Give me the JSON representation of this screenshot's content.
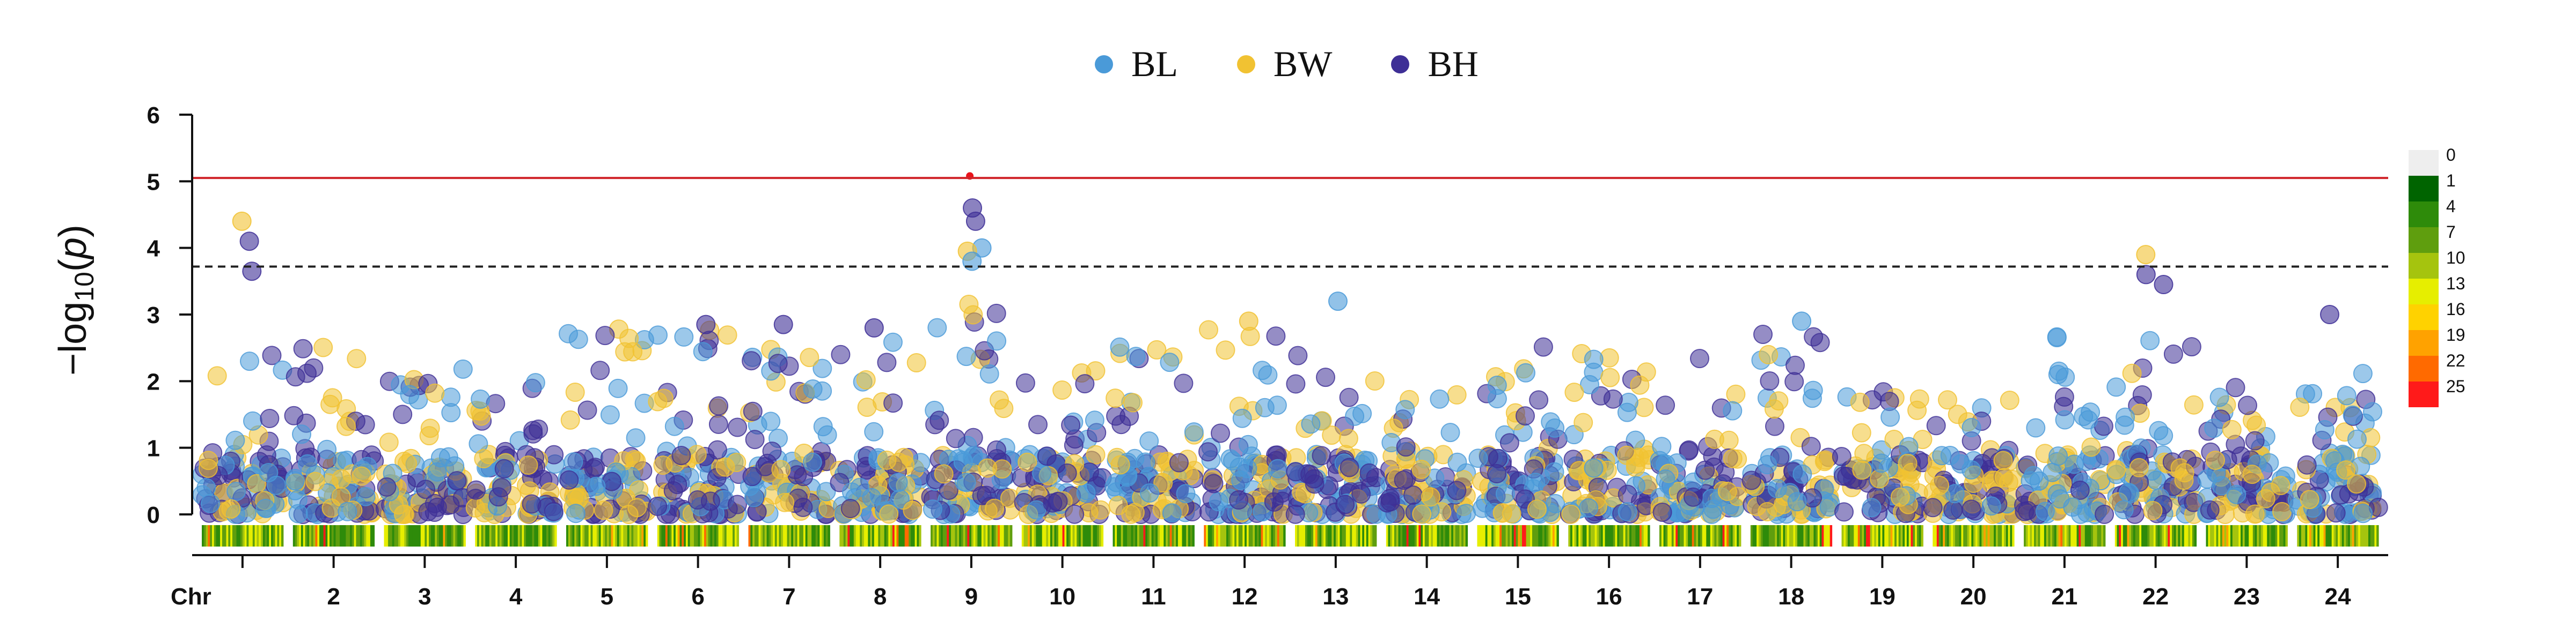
{
  "chart_data": {
    "type": "scatter",
    "ylabel": "−log10(p)",
    "ylim": [
      0,
      6
    ],
    "y_ticks": [
      "0",
      "1",
      "2",
      "3",
      "4",
      "5",
      "6"
    ],
    "chr_label": "Chr",
    "chromosomes": [
      "",
      "2",
      "3",
      "4",
      "5",
      "6",
      "7",
      "8",
      "9",
      "10",
      "11",
      "12",
      "13",
      "14",
      "15",
      "16",
      "17",
      "18",
      "19",
      "20",
      "21",
      "22",
      "23",
      "24"
    ],
    "significance_threshold": 5.05,
    "suggestive_threshold": 3.72,
    "series": [
      {
        "name": "BL",
        "color": "#4a9ad8"
      },
      {
        "name": "BW",
        "color": "#f1c232"
      },
      {
        "name": "BH",
        "color": "#3e2f96"
      }
    ],
    "peaks": [
      {
        "chr": "1",
        "series": "BW",
        "value": 4.4
      },
      {
        "chr": "1",
        "series": "BH",
        "value": 4.1
      },
      {
        "chr": "1",
        "series": "BH",
        "value": 3.65
      },
      {
        "chr": "9",
        "series": "BH",
        "value": 5.08,
        "highlight": true
      },
      {
        "chr": "9",
        "series": "BH",
        "value": 4.6
      },
      {
        "chr": "9",
        "series": "BH",
        "value": 4.4
      },
      {
        "chr": "9",
        "series": "BL",
        "value": 4.0
      },
      {
        "chr": "9",
        "series": "BW",
        "value": 3.95
      },
      {
        "chr": "9",
        "series": "BL",
        "value": 3.8
      },
      {
        "chr": "22",
        "series": "BW",
        "value": 3.9
      },
      {
        "chr": "22",
        "series": "BH",
        "value": 3.6
      },
      {
        "chr": "22",
        "series": "BH",
        "value": 3.45
      },
      {
        "chr": "13",
        "series": "BL",
        "value": 3.2
      },
      {
        "chr": "24",
        "series": "BH",
        "value": 3.0
      },
      {
        "chr": "18",
        "series": "BL",
        "value": 2.9
      },
      {
        "chr": "6",
        "series": "BH",
        "value": 2.85
      },
      {
        "chr": "7",
        "series": "BH",
        "value": 2.85
      },
      {
        "chr": "12",
        "series": "BW",
        "value": 2.9
      },
      {
        "chr": "8",
        "series": "BH",
        "value": 2.8
      }
    ],
    "density_legend": {
      "labels": [
        "0",
        "1",
        "4",
        "7",
        "10",
        "13",
        "16",
        "19",
        "22",
        "25"
      ],
      "colors": [
        "#eeeeee",
        "#006400",
        "#2e8b0a",
        "#5f9e0e",
        "#a5c40e",
        "#e6ee00",
        "#ffd200",
        "#ffa200",
        "#ff6a00",
        "#ff1a1a"
      ]
    }
  }
}
